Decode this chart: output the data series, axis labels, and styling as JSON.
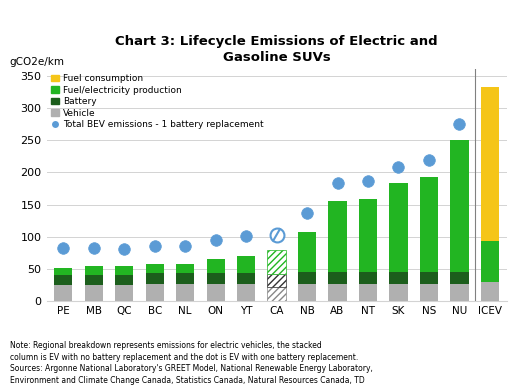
{
  "title": "Chart 3: Lifecycle Emissions of Electric and\nGasoline SUVs",
  "ylabel": "gCO2e/km",
  "categories": [
    "PE",
    "MB",
    "QC",
    "BC",
    "NL",
    "ON",
    "YT",
    "CA",
    "NB",
    "AB",
    "NT",
    "SK",
    "NS",
    "NU",
    "ICEV"
  ],
  "vehicle": [
    25,
    25,
    25,
    27,
    27,
    27,
    27,
    0,
    27,
    27,
    27,
    27,
    27,
    27,
    30
  ],
  "battery": [
    15,
    16,
    16,
    16,
    16,
    16,
    16,
    0,
    18,
    18,
    18,
    18,
    18,
    18,
    0
  ],
  "fuel_elec": [
    12,
    13,
    13,
    15,
    14,
    23,
    27,
    0,
    63,
    110,
    113,
    138,
    148,
    205,
    63
  ],
  "fuel_consumption": [
    0,
    0,
    0,
    0,
    0,
    0,
    0,
    0,
    0,
    0,
    0,
    0,
    0,
    0,
    240
  ],
  "dot_values": [
    82,
    82,
    81,
    85,
    85,
    95,
    101,
    null,
    137,
    183,
    186,
    208,
    220,
    275,
    null
  ],
  "ca_hatched_vehicle": 22,
  "ca_hatched_battery": 20,
  "ca_hatched_fuel": 38,
  "ca_dot_value": 103,
  "ylim": [
    0,
    360
  ],
  "yticks": [
    0,
    50,
    100,
    150,
    200,
    250,
    300,
    350
  ],
  "colors": {
    "vehicle": "#b0b0b0",
    "battery": "#1c5e1c",
    "fuel_elec": "#22b522",
    "fuel_consumption": "#f5c518",
    "dot": "#5b9bd5"
  },
  "note": "Note: Regional breakdown represents emissions for electric vehicles, the stacked\ncolumn is EV with no battery replacement and the dot is EV with one battery replacement.\nSources: Argonne National Laboratory's GREET Model, National Renewable Energy Laboratory,\nEnvironment and Climate Change Canada, Statistics Canada, Natural Resources Canada, TD",
  "background_color": "#ffffff"
}
